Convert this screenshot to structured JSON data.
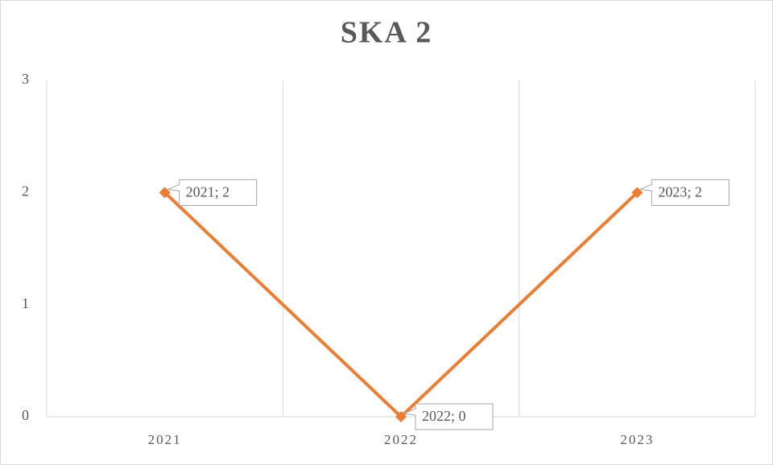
{
  "chart_data": {
    "type": "line",
    "title": "SKA 2",
    "categories": [
      "2021",
      "2022",
      "2023"
    ],
    "values": [
      2,
      0,
      2
    ],
    "value_labels": [
      "2021; 2",
      "2022; 0",
      "2023; 2"
    ],
    "color": "#ed7d31",
    "ylim": [
      0,
      3
    ],
    "yticks": [
      0,
      1,
      2,
      3
    ],
    "grid": "vertical"
  }
}
